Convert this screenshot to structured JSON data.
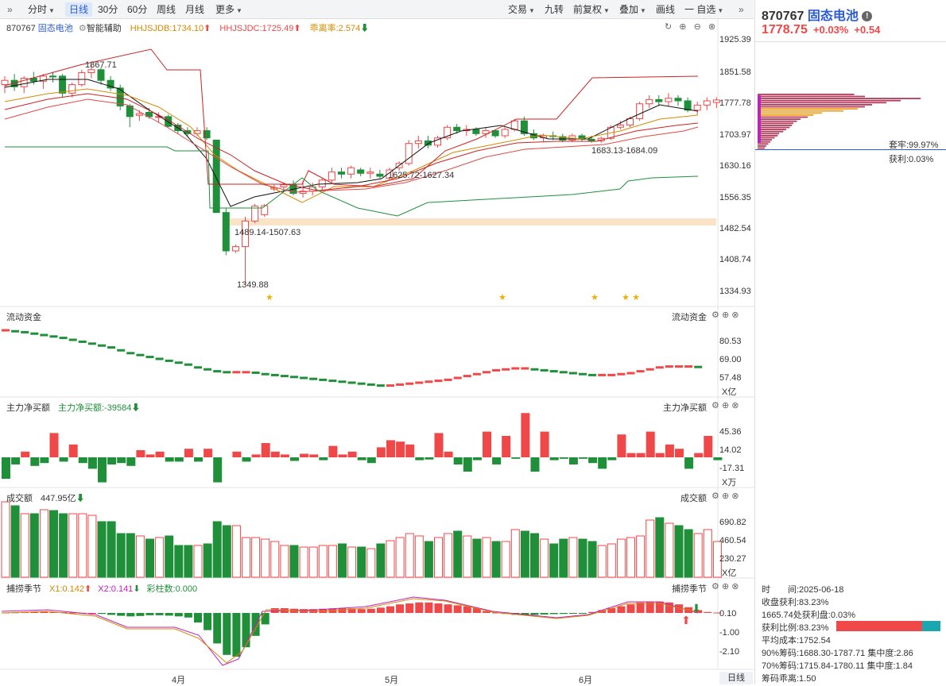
{
  "toolbar": {
    "collapse": "»",
    "items": [
      "分时",
      "日线",
      "30分",
      "60分",
      "周线",
      "月线",
      "更多"
    ],
    "right": [
      "交易",
      "九转",
      "前复权",
      "叠加",
      "画线",
      "一 自选"
    ],
    "expand": "»"
  },
  "stock": {
    "code": "870767",
    "name": "固态电池",
    "price": "1778.75",
    "pct": "+0.03%",
    "chg": "+0.54"
  },
  "main": {
    "code": "870767",
    "name": "固态电池",
    "assist": "智能辅助",
    "ind1": "HHJSJDB:1734.10",
    "ind2": "HHJSJDC:1725.49",
    "ind3": "乖离率:2.574",
    "yticks": [
      "1925.39",
      "1851.58",
      "1777.78",
      "1703.97",
      "1630.16",
      "1556.35",
      "1482.54",
      "1408.74",
      "1334.93"
    ],
    "labels": {
      "high": "1867.71",
      "low": "1349.88",
      "a": "1489.14-1507.63",
      "b": "1625.72-1627.34",
      "c": "1683.13-1684.09"
    }
  },
  "p1": {
    "title": "流动资金",
    "right": "流动资金",
    "yticks": [
      "80.53",
      "69.00",
      "57.48"
    ],
    "unit": "X亿"
  },
  "p2": {
    "title": "主力净买额",
    "val": "主力净买额:-39584",
    "right": "主力净买额",
    "yticks": [
      "45.36",
      "14.02",
      "-17.31"
    ],
    "unit": "X万"
  },
  "p3": {
    "title": "成交额",
    "val": "447.95亿",
    "right": "成交额",
    "yticks": [
      "690.82",
      "460.54",
      "230.27"
    ],
    "unit": "X亿"
  },
  "p4": {
    "title": "捕捞季节",
    "x1": "X1:0.142",
    "x2": "X2:0.141",
    "bar": "彩柱数:0.000",
    "right": "捕捞季节",
    "yticks": [
      "0.10",
      "-1.00",
      "-2.10"
    ]
  },
  "xaxis": {
    "ticks": [
      "4月",
      "5月",
      "6月"
    ],
    "period": "日线"
  },
  "chips": {
    "lock": "套牢:99.97%",
    "profit": "获利:0.03%",
    "time": "时　　间:2025-06-18",
    "rows": [
      "收盘获利:83.23%",
      "1665.74处获利盘:0.03%",
      "获利比例:83.23%",
      "平均成本:1752.54",
      "90%筹码:1688.30-1787.71 集中度:2.86",
      "70%筹码:1715.84-1780.11 集中度:1.84",
      "筹码乖离:1.50"
    ]
  },
  "colors": {
    "up": "#f04848",
    "down": "#1f8f3a",
    "blue": "#2a5bd7"
  }
}
